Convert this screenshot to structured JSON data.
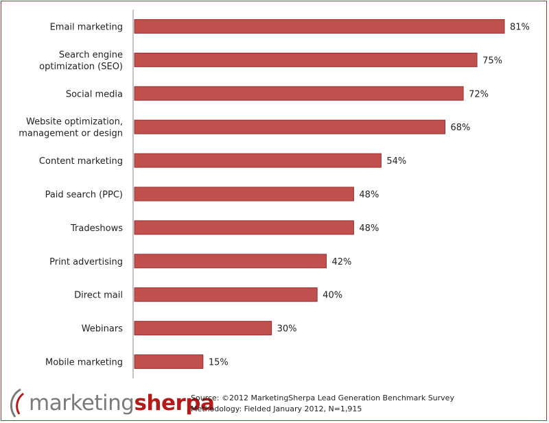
{
  "chart_data": {
    "type": "bar",
    "orientation": "horizontal",
    "categories": [
      [
        "Email marketing"
      ],
      [
        "Search engine",
        "optimization  (SEO)"
      ],
      [
        "Social media"
      ],
      [
        "Website optimization,",
        "management or design"
      ],
      [
        "Content marketing"
      ],
      [
        "Paid search (PPC)"
      ],
      [
        "Tradeshows"
      ],
      [
        "Print advertising"
      ],
      [
        "Direct mail"
      ],
      [
        "Webinars"
      ],
      [
        "Mobile marketing"
      ]
    ],
    "values": [
      81,
      75,
      72,
      68,
      54,
      48,
      48,
      42,
      40,
      30,
      15
    ],
    "data_labels": [
      "81%",
      "75%",
      "72%",
      "68%",
      "54%",
      "48%",
      "48%",
      "42%",
      "40%",
      "30%",
      "15%"
    ],
    "xlim": [
      0,
      81
    ],
    "bar_color": "#c0504d",
    "bar_border_color": "#9c2f2f",
    "grid": false,
    "legend": "none"
  },
  "footer": {
    "logo": {
      "word1": "marketing",
      "word2": "sherpa"
    },
    "source_line1": "Source: ©2012 MarketingSherpa Lead Generation Benchmark Survey",
    "source_line2": "Methodology: Fielded January 2012, N=1,915"
  }
}
